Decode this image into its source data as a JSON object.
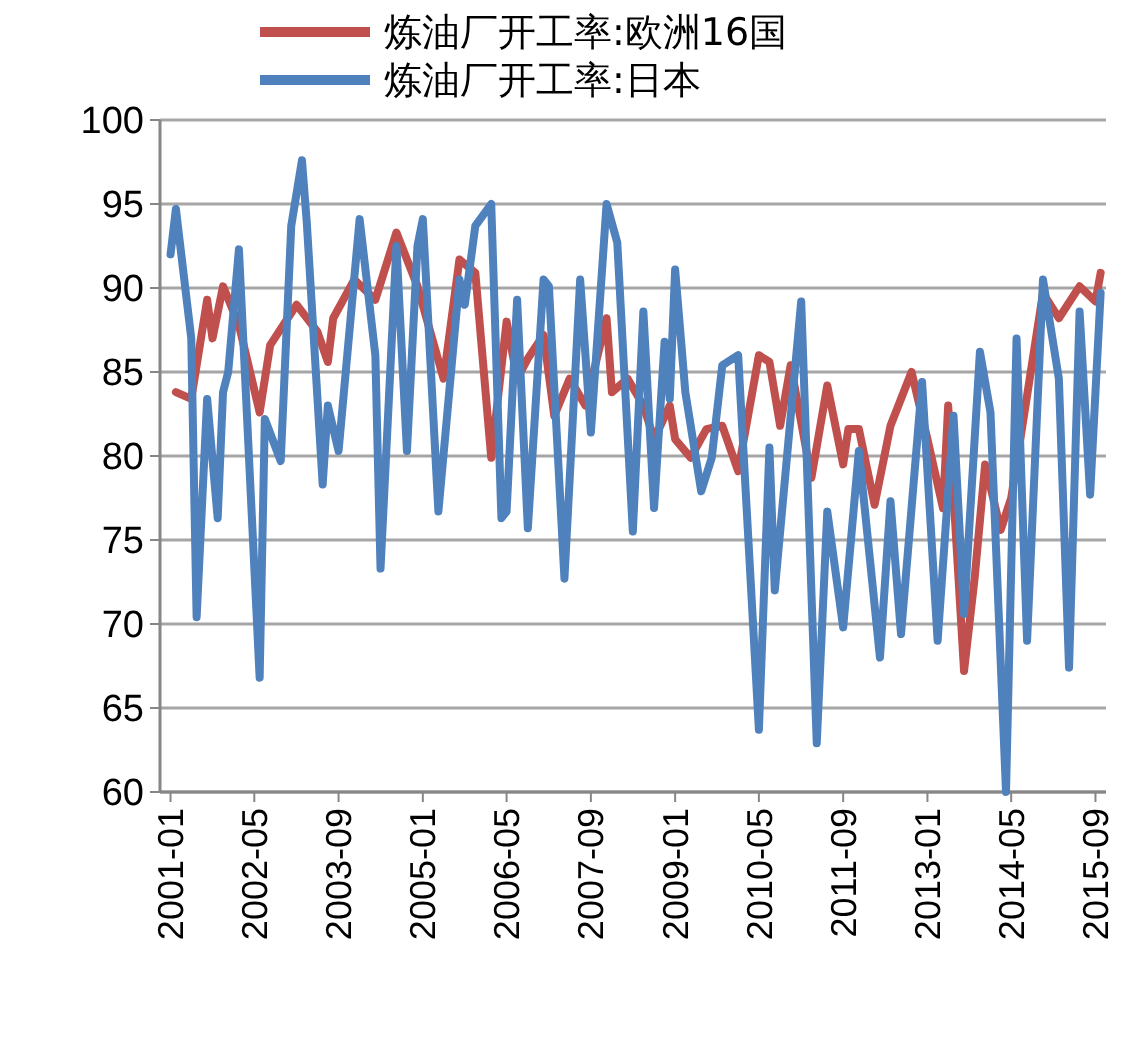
{
  "chart_data": {
    "type": "line",
    "legend": "top",
    "grid": "y",
    "ylim": [
      60,
      100
    ],
    "yticks": [
      60,
      65,
      70,
      75,
      80,
      85,
      90,
      95,
      100
    ],
    "xlim": [
      "2000-11",
      "2015-11"
    ],
    "xticks": [
      "2001-01",
      "2002-05",
      "2003-09",
      "2005-01",
      "2006-05",
      "2007-09",
      "2009-01",
      "2010-05",
      "2011-09",
      "2013-01",
      "2014-05",
      "2015-09"
    ],
    "marker": "none",
    "line_style": "solid",
    "series": [
      {
        "name": "炼油厂开工率:欧洲16国",
        "color": "#c0504d",
        "x": [
          "2001-02",
          "2001-05",
          "2001-08",
          "2001-09",
          "2001-11",
          "2002-02",
          "2002-06",
          "2002-08",
          "2003-01",
          "2003-05",
          "2003-07",
          "2003-08",
          "2003-12",
          "2004-04",
          "2004-08",
          "2004-12",
          "2005-05",
          "2005-08",
          "2005-11",
          "2006-02",
          "2006-05",
          "2006-07",
          "2006-09",
          "2006-12",
          "2007-02",
          "2007-05",
          "2007-08",
          "2007-12",
          "2008-01",
          "2008-04",
          "2008-07",
          "2008-09",
          "2008-12",
          "2009-01",
          "2009-04",
          "2009-07",
          "2009-10",
          "2010-01",
          "2010-05",
          "2010-07",
          "2010-09",
          "2010-11",
          "2011-03",
          "2011-06",
          "2011-09",
          "2011-10",
          "2011-12",
          "2012-03",
          "2012-06",
          "2012-10",
          "2013-01",
          "2013-04",
          "2013-05",
          "2013-08",
          "2013-10",
          "2013-12",
          "2014-03",
          "2014-05",
          "2014-11",
          "2015-02",
          "2015-06",
          "2015-09",
          "2015-10"
        ],
        "values": [
          83.8,
          83.4,
          89.3,
          87,
          90.1,
          87.8,
          82.6,
          86.6,
          89,
          87.4,
          85.6,
          88.2,
          90.5,
          89.3,
          93.3,
          90.1,
          84.6,
          91.7,
          90.9,
          79.9,
          88,
          84.6,
          85.8,
          87.2,
          82.4,
          84.6,
          83,
          88.2,
          83.8,
          84.6,
          83,
          81,
          83,
          81,
          79.9,
          81.6,
          81.8,
          79.1,
          86,
          85.6,
          81.8,
          85.4,
          78.7,
          84.2,
          79.5,
          81.6,
          81.6,
          77.1,
          81.8,
          85,
          81,
          76.9,
          83,
          67.2,
          72.7,
          79.5,
          75.6,
          77.5,
          89.7,
          88.2,
          90.1,
          89.2,
          90.9
        ]
      },
      {
        "name": "炼油厂开工率:日本",
        "color": "#4f81bd",
        "x": [
          "2001-01",
          "2001-02",
          "2001-05",
          "2001-06",
          "2001-08",
          "2001-10",
          "2001-11",
          "2001-12",
          "2002-02",
          "2002-06",
          "2002-07",
          "2002-10",
          "2002-12",
          "2003-02",
          "2003-03",
          "2003-06",
          "2003-07",
          "2003-09",
          "2004-01",
          "2004-04",
          "2004-05",
          "2004-08",
          "2004-10",
          "2004-12",
          "2005-01",
          "2005-04",
          "2005-08",
          "2005-09",
          "2005-11",
          "2006-02",
          "2006-04",
          "2006-05",
          "2006-07",
          "2006-09",
          "2006-12",
          "2007-01",
          "2007-04",
          "2007-07",
          "2007-09",
          "2007-12",
          "2008-02",
          "2008-05",
          "2008-07",
          "2008-09",
          "2008-11",
          "2008-12",
          "2009-01",
          "2009-03",
          "2009-06",
          "2009-08",
          "2009-10",
          "2010-01",
          "2010-05",
          "2010-07",
          "2010-08",
          "2011-01",
          "2011-04",
          "2011-06",
          "2011-09",
          "2011-12",
          "2012-04",
          "2012-06",
          "2012-08",
          "2012-12",
          "2013-03",
          "2013-06",
          "2013-08",
          "2013-11",
          "2014-01",
          "2014-04",
          "2014-06",
          "2014-08",
          "2014-11",
          "2015-01",
          "2015-02",
          "2015-04",
          "2015-06",
          "2015-08",
          "2015-10"
        ],
        "values": [
          92,
          94.7,
          87,
          70.4,
          83.4,
          76.3,
          83.8,
          85,
          92.3,
          66.8,
          82.2,
          79.7,
          93.7,
          97.6,
          93.9,
          78.3,
          83,
          80.3,
          94.1,
          86,
          73.3,
          92.5,
          80.3,
          92.5,
          94.1,
          76.7,
          90.5,
          89,
          93.7,
          95,
          76.3,
          76.7,
          89.3,
          75.7,
          90.5,
          90.1,
          72.7,
          90.5,
          81.4,
          95,
          92.7,
          75.5,
          88.6,
          76.9,
          86.8,
          83.4,
          91.1,
          83.8,
          77.9,
          79.9,
          85.4,
          86,
          63.7,
          80.5,
          72,
          89.2,
          62.9,
          76.7,
          69.8,
          80.3,
          68,
          77.3,
          69.4,
          84.4,
          69,
          82.4,
          70.6,
          86.2,
          82.6,
          60,
          87,
          69,
          90.5,
          86.6,
          84.6,
          67.4,
          88.6,
          77.7,
          89.7
        ]
      }
    ]
  }
}
